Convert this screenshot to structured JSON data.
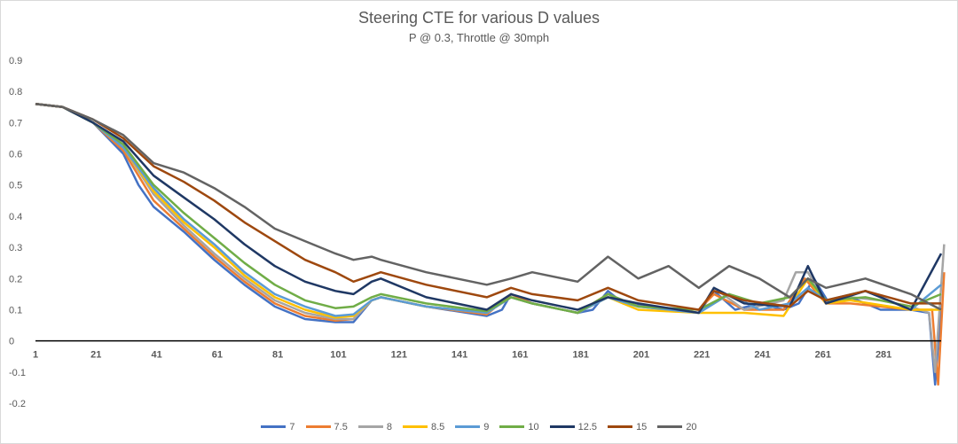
{
  "chart_data": {
    "type": "line",
    "title": "Steering CTE for various D values",
    "subtitle": "P @ 0.3, Throttle @ 30mph",
    "xlabel": "",
    "ylabel": "",
    "x_tick_labels": [
      "1",
      "21",
      "41",
      "61",
      "81",
      "101",
      "121",
      "141",
      "161",
      "181",
      "201",
      "221",
      "241",
      "261",
      "281"
    ],
    "y_ticks": [
      -0.2,
      -0.1,
      0,
      0.1,
      0.2,
      0.3,
      0.4,
      0.5,
      0.6,
      0.7,
      0.8,
      0.9
    ],
    "y_tick_labels": [
      "-0.2",
      "-0.1",
      "0",
      "0.1",
      "0.2",
      "0.3",
      "0.4",
      "0.5",
      "0.6",
      "0.7",
      "0.8",
      "0.9"
    ],
    "xlim": [
      1,
      300
    ],
    "ylim": [
      -0.2,
      0.9
    ],
    "grid": true,
    "legend_position": "bottom",
    "series": [
      {
        "name": "7",
        "color": "#4472c4",
        "points": [
          [
            1,
            0.76
          ],
          [
            10,
            0.75
          ],
          [
            20,
            0.7
          ],
          [
            30,
            0.6
          ],
          [
            35,
            0.5
          ],
          [
            40,
            0.43
          ],
          [
            50,
            0.35
          ],
          [
            60,
            0.26
          ],
          [
            70,
            0.18
          ],
          [
            80,
            0.11
          ],
          [
            90,
            0.07
          ],
          [
            100,
            0.06
          ],
          [
            106,
            0.06
          ],
          [
            112,
            0.13
          ],
          [
            115,
            0.14
          ],
          [
            130,
            0.11
          ],
          [
            150,
            0.08
          ],
          [
            155,
            0.1
          ],
          [
            158,
            0.15
          ],
          [
            165,
            0.12
          ],
          [
            180,
            0.09
          ],
          [
            185,
            0.1
          ],
          [
            190,
            0.16
          ],
          [
            195,
            0.12
          ],
          [
            210,
            0.1
          ],
          [
            220,
            0.09
          ],
          [
            225,
            0.16
          ],
          [
            232,
            0.1
          ],
          [
            240,
            0.12
          ],
          [
            248,
            0.1
          ],
          [
            253,
            0.12
          ],
          [
            258,
            0.2
          ],
          [
            263,
            0.12
          ],
          [
            270,
            0.14
          ],
          [
            280,
            0.1
          ],
          [
            290,
            0.1
          ],
          [
            296,
            0.09
          ],
          [
            298,
            -0.14
          ],
          [
            300,
            0.12
          ]
        ]
      },
      {
        "name": "7.5",
        "color": "#ed7d31",
        "points": [
          [
            1,
            0.76
          ],
          [
            10,
            0.75
          ],
          [
            20,
            0.7
          ],
          [
            30,
            0.61
          ],
          [
            40,
            0.45
          ],
          [
            50,
            0.36
          ],
          [
            60,
            0.27
          ],
          [
            70,
            0.19
          ],
          [
            80,
            0.12
          ],
          [
            90,
            0.08
          ],
          [
            100,
            0.065
          ],
          [
            106,
            0.07
          ],
          [
            112,
            0.13
          ],
          [
            115,
            0.14
          ],
          [
            130,
            0.11
          ],
          [
            150,
            0.085
          ],
          [
            158,
            0.15
          ],
          [
            165,
            0.12
          ],
          [
            180,
            0.09
          ],
          [
            190,
            0.15
          ],
          [
            200,
            0.11
          ],
          [
            220,
            0.1
          ],
          [
            225,
            0.15
          ],
          [
            235,
            0.1
          ],
          [
            248,
            0.1
          ],
          [
            255,
            0.2
          ],
          [
            262,
            0.12
          ],
          [
            270,
            0.12
          ],
          [
            280,
            0.11
          ],
          [
            290,
            0.1
          ],
          [
            297,
            0.1
          ],
          [
            299,
            -0.14
          ],
          [
            301,
            0.22
          ]
        ]
      },
      {
        "name": "8",
        "color": "#a5a5a5",
        "points": [
          [
            1,
            0.76
          ],
          [
            10,
            0.75
          ],
          [
            20,
            0.7
          ],
          [
            30,
            0.62
          ],
          [
            40,
            0.47
          ],
          [
            50,
            0.37
          ],
          [
            60,
            0.28
          ],
          [
            70,
            0.2
          ],
          [
            80,
            0.13
          ],
          [
            90,
            0.09
          ],
          [
            100,
            0.07
          ],
          [
            106,
            0.07
          ],
          [
            112,
            0.13
          ],
          [
            115,
            0.14
          ],
          [
            130,
            0.11
          ],
          [
            150,
            0.09
          ],
          [
            158,
            0.14
          ],
          [
            165,
            0.12
          ],
          [
            180,
            0.09
          ],
          [
            190,
            0.14
          ],
          [
            200,
            0.11
          ],
          [
            220,
            0.09
          ],
          [
            225,
            0.17
          ],
          [
            235,
            0.1
          ],
          [
            248,
            0.13
          ],
          [
            252,
            0.22
          ],
          [
            256,
            0.22
          ],
          [
            262,
            0.12
          ],
          [
            270,
            0.14
          ],
          [
            280,
            0.13
          ],
          [
            290,
            0.11
          ],
          [
            296,
            0.09
          ],
          [
            298,
            -0.1
          ],
          [
            301,
            0.31
          ]
        ]
      },
      {
        "name": "8.5",
        "color": "#ffc000",
        "points": [
          [
            1,
            0.76
          ],
          [
            10,
            0.75
          ],
          [
            20,
            0.7
          ],
          [
            30,
            0.62
          ],
          [
            40,
            0.48
          ],
          [
            50,
            0.38
          ],
          [
            60,
            0.3
          ],
          [
            70,
            0.21
          ],
          [
            80,
            0.14
          ],
          [
            90,
            0.1
          ],
          [
            100,
            0.075
          ],
          [
            106,
            0.08
          ],
          [
            112,
            0.13
          ],
          [
            115,
            0.14
          ],
          [
            130,
            0.11
          ],
          [
            150,
            0.09
          ],
          [
            158,
            0.14
          ],
          [
            165,
            0.12
          ],
          [
            180,
            0.09
          ],
          [
            190,
            0.14
          ],
          [
            200,
            0.1
          ],
          [
            220,
            0.09
          ],
          [
            235,
            0.09
          ],
          [
            248,
            0.08
          ],
          [
            256,
            0.2
          ],
          [
            262,
            0.12
          ],
          [
            270,
            0.13
          ],
          [
            290,
            0.1
          ],
          [
            300,
            0.1
          ]
        ]
      },
      {
        "name": "9",
        "color": "#5b9bd5",
        "points": [
          [
            1,
            0.76
          ],
          [
            10,
            0.75
          ],
          [
            20,
            0.7
          ],
          [
            30,
            0.62
          ],
          [
            40,
            0.49
          ],
          [
            50,
            0.39
          ],
          [
            60,
            0.31
          ],
          [
            70,
            0.22
          ],
          [
            80,
            0.15
          ],
          [
            90,
            0.11
          ],
          [
            100,
            0.08
          ],
          [
            106,
            0.085
          ],
          [
            112,
            0.13
          ],
          [
            115,
            0.14
          ],
          [
            130,
            0.11
          ],
          [
            150,
            0.09
          ],
          [
            158,
            0.14
          ],
          [
            165,
            0.12
          ],
          [
            180,
            0.09
          ],
          [
            190,
            0.14
          ],
          [
            200,
            0.11
          ],
          [
            220,
            0.09
          ],
          [
            230,
            0.15
          ],
          [
            240,
            0.1
          ],
          [
            250,
            0.12
          ],
          [
            256,
            0.17
          ],
          [
            262,
            0.13
          ],
          [
            275,
            0.16
          ],
          [
            290,
            0.1
          ],
          [
            300,
            0.18
          ]
        ]
      },
      {
        "name": "10",
        "color": "#70ad47",
        "points": [
          [
            1,
            0.76
          ],
          [
            10,
            0.75
          ],
          [
            20,
            0.7
          ],
          [
            30,
            0.63
          ],
          [
            40,
            0.5
          ],
          [
            50,
            0.41
          ],
          [
            60,
            0.33
          ],
          [
            70,
            0.25
          ],
          [
            80,
            0.18
          ],
          [
            90,
            0.13
          ],
          [
            100,
            0.105
          ],
          [
            106,
            0.11
          ],
          [
            112,
            0.14
          ],
          [
            115,
            0.15
          ],
          [
            130,
            0.12
          ],
          [
            150,
            0.095
          ],
          [
            158,
            0.14
          ],
          [
            165,
            0.12
          ],
          [
            180,
            0.09
          ],
          [
            190,
            0.15
          ],
          [
            200,
            0.11
          ],
          [
            220,
            0.1
          ],
          [
            230,
            0.15
          ],
          [
            240,
            0.12
          ],
          [
            250,
            0.14
          ],
          [
            256,
            0.2
          ],
          [
            262,
            0.13
          ],
          [
            275,
            0.14
          ],
          [
            290,
            0.11
          ],
          [
            300,
            0.15
          ]
        ]
      },
      {
        "name": "12.5",
        "color": "#1f3864",
        "points": [
          [
            1,
            0.76
          ],
          [
            10,
            0.75
          ],
          [
            20,
            0.7
          ],
          [
            30,
            0.64
          ],
          [
            40,
            0.53
          ],
          [
            50,
            0.46
          ],
          [
            60,
            0.39
          ],
          [
            70,
            0.31
          ],
          [
            80,
            0.24
          ],
          [
            90,
            0.19
          ],
          [
            100,
            0.16
          ],
          [
            106,
            0.15
          ],
          [
            112,
            0.19
          ],
          [
            115,
            0.2
          ],
          [
            130,
            0.14
          ],
          [
            150,
            0.1
          ],
          [
            158,
            0.15
          ],
          [
            165,
            0.13
          ],
          [
            180,
            0.1
          ],
          [
            190,
            0.14
          ],
          [
            200,
            0.12
          ],
          [
            220,
            0.09
          ],
          [
            225,
            0.17
          ],
          [
            235,
            0.12
          ],
          [
            250,
            0.11
          ],
          [
            256,
            0.24
          ],
          [
            262,
            0.12
          ],
          [
            275,
            0.16
          ],
          [
            290,
            0.1
          ],
          [
            300,
            0.28
          ]
        ]
      },
      {
        "name": "15",
        "color": "#9e480e",
        "points": [
          [
            1,
            0.76
          ],
          [
            10,
            0.75
          ],
          [
            20,
            0.71
          ],
          [
            30,
            0.65
          ],
          [
            40,
            0.56
          ],
          [
            50,
            0.51
          ],
          [
            60,
            0.45
          ],
          [
            70,
            0.38
          ],
          [
            80,
            0.32
          ],
          [
            90,
            0.26
          ],
          [
            100,
            0.22
          ],
          [
            106,
            0.19
          ],
          [
            112,
            0.21
          ],
          [
            115,
            0.22
          ],
          [
            130,
            0.18
          ],
          [
            150,
            0.14
          ],
          [
            158,
            0.17
          ],
          [
            165,
            0.15
          ],
          [
            180,
            0.13
          ],
          [
            190,
            0.17
          ],
          [
            200,
            0.13
          ],
          [
            220,
            0.1
          ],
          [
            225,
            0.16
          ],
          [
            235,
            0.13
          ],
          [
            250,
            0.11
          ],
          [
            256,
            0.16
          ],
          [
            262,
            0.13
          ],
          [
            275,
            0.16
          ],
          [
            290,
            0.12
          ],
          [
            300,
            0.12
          ]
        ]
      },
      {
        "name": "20",
        "color": "#636363",
        "points": [
          [
            1,
            0.76
          ],
          [
            10,
            0.75
          ],
          [
            20,
            0.71
          ],
          [
            30,
            0.66
          ],
          [
            40,
            0.57
          ],
          [
            50,
            0.54
          ],
          [
            60,
            0.49
          ],
          [
            70,
            0.43
          ],
          [
            80,
            0.36
          ],
          [
            90,
            0.32
          ],
          [
            100,
            0.28
          ],
          [
            106,
            0.26
          ],
          [
            112,
            0.27
          ],
          [
            115,
            0.26
          ],
          [
            130,
            0.22
          ],
          [
            150,
            0.18
          ],
          [
            158,
            0.2
          ],
          [
            165,
            0.22
          ],
          [
            180,
            0.19
          ],
          [
            190,
            0.27
          ],
          [
            200,
            0.2
          ],
          [
            210,
            0.24
          ],
          [
            220,
            0.17
          ],
          [
            230,
            0.24
          ],
          [
            240,
            0.2
          ],
          [
            250,
            0.14
          ],
          [
            256,
            0.2
          ],
          [
            262,
            0.17
          ],
          [
            275,
            0.2
          ],
          [
            290,
            0.15
          ],
          [
            300,
            0.1
          ]
        ]
      }
    ]
  }
}
